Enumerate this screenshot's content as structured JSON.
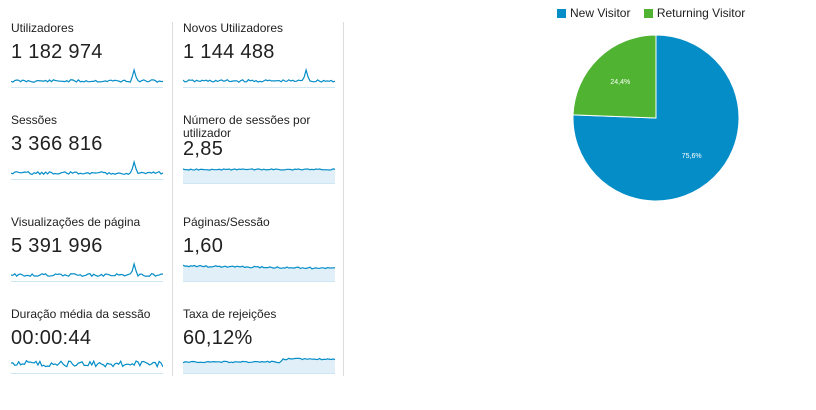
{
  "metrics": [
    {
      "label": "Utilizadores",
      "value": "1 182 974",
      "trend": "flat-spike"
    },
    {
      "label": "Novos Utilizadores",
      "value": "1 144 488",
      "trend": "flat-spike"
    },
    {
      "label": "Sessões",
      "value": "3 366 816",
      "trend": "flat-spike"
    },
    {
      "label": "Número de sessões por utilizador",
      "value": "2,85",
      "trend": "flat-filled"
    },
    {
      "label": "Visualizações de página",
      "value": "5 391 996",
      "trend": "flat-spike"
    },
    {
      "label": "Páginas/Sessão",
      "value": "1,60",
      "trend": "declining-filled"
    },
    {
      "label": "Duração média da sessão",
      "value": "00:00:44",
      "trend": "noisy"
    },
    {
      "label": "Taxa de rejeições",
      "value": "60,12%",
      "trend": "rising-filled"
    }
  ],
  "colors": {
    "new_visitor": "#058dc7",
    "returning_visitor": "#50b432",
    "sparkline": "#058dc7",
    "spark_fill": "#e1f0f8"
  },
  "chart_data": {
    "type": "pie",
    "legend_position": "top",
    "legend": [
      "New Visitor",
      "Returning Visitor"
    ],
    "slices": [
      {
        "name": "New Visitor",
        "value": 75.6,
        "label": "75,6%",
        "color": "#058dc7"
      },
      {
        "name": "Returning Visitor",
        "value": 24.4,
        "label": "24,4%",
        "color": "#50b432"
      }
    ]
  }
}
